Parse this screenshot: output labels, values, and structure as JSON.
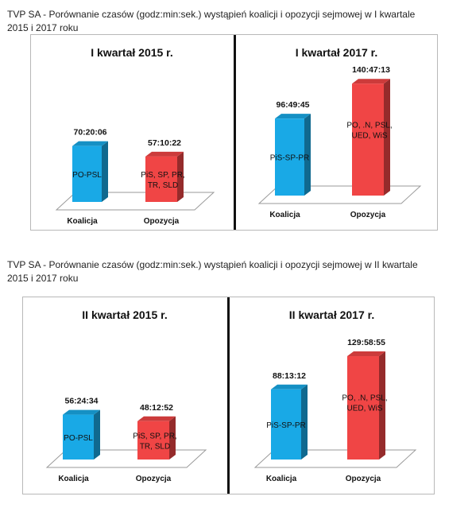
{
  "sections": [
    {
      "heading_line1": "TVP SA - Porównanie czasów (godz:min:sek.) wystąpień koalicji i opozycji sejmowej w I kwartale",
      "heading_line2": "2015 i 2017 roku"
    },
    {
      "heading_line1": "TVP SA - Porównanie czasów (godz:min:sek.) wystąpień koalicji i opozycji sejmowej w II kwartale",
      "heading_line2": "2015 i 2017 roku"
    }
  ],
  "colors": {
    "koalicja": "#19a9e6",
    "opozycja": "#f04545",
    "divider": "#111111",
    "border": "#b8b8b8"
  },
  "chart_data": [
    {
      "type": "bar",
      "title": "I kwartał 2015 r.",
      "categories": [
        "Koalicja",
        "Opozycja"
      ],
      "values": [
        70.335,
        57.173
      ],
      "value_labels": [
        "70:20:06",
        "57:10:22"
      ],
      "bar_labels": [
        [
          "PO-PSL"
        ],
        [
          "PiS, SP, PR,",
          "TR, SLD"
        ]
      ],
      "ylim": [
        0,
        150
      ],
      "grid": false,
      "legend": "none"
    },
    {
      "type": "bar",
      "title": "I kwartał 2017 r.",
      "categories": [
        "Koalicja",
        "Opozycja"
      ],
      "values": [
        96.829,
        140.787
      ],
      "value_labels": [
        "96:49:45",
        "140:47:13"
      ],
      "bar_labels": [
        [
          "PiS-SP-PR"
        ],
        [
          "PO, .N, PSL,",
          "UED, WiS"
        ]
      ],
      "ylim": [
        0,
        150
      ],
      "grid": false,
      "legend": "none"
    },
    {
      "type": "bar",
      "title": "II kwartał 2015 r.",
      "categories": [
        "Koalicja",
        "Opozycja"
      ],
      "values": [
        56.409,
        48.214
      ],
      "value_labels": [
        "56:24:34",
        "48:12:52"
      ],
      "bar_labels": [
        [
          "PO-PSL"
        ],
        [
          "PiS, SP, PR,",
          "TR, SLD"
        ]
      ],
      "ylim": [
        0,
        150
      ],
      "grid": false,
      "legend": "none"
    },
    {
      "type": "bar",
      "title": "II kwartał 2017 r.",
      "categories": [
        "Koalicja",
        "Opozycja"
      ],
      "values": [
        88.22,
        129.982
      ],
      "value_labels": [
        "88:13:12",
        "129:58:55"
      ],
      "bar_labels": [
        [
          "PiS-SP-PR"
        ],
        [
          "PO, .N, PSL,",
          "UED, WiS"
        ]
      ],
      "ylim": [
        0,
        150
      ],
      "grid": false,
      "legend": "none"
    }
  ]
}
